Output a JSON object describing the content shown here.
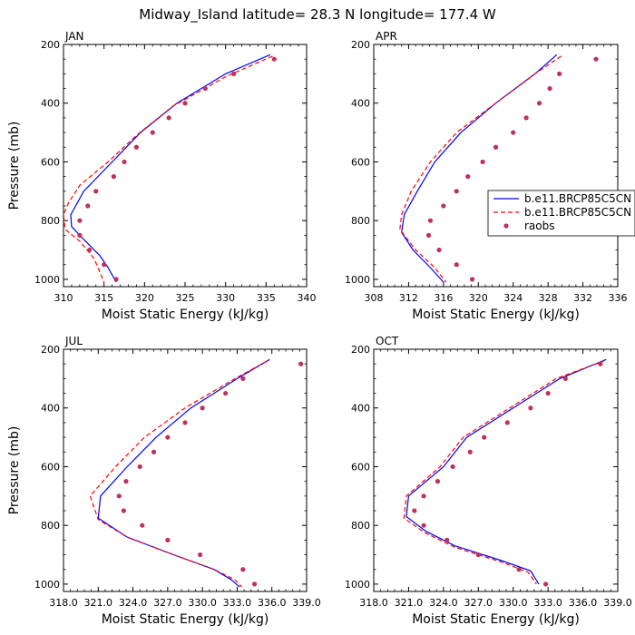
{
  "figure_title": "Midway_Island  latitude= 28.3 N longitude= 177.4 W",
  "colors": {
    "model1": "#0000ff",
    "model2": "#ff0000",
    "raobs": "#c0305a"
  },
  "legend": {
    "entries": [
      {
        "label": "b.e11.BRCP85C5CN",
        "style": "solid"
      },
      {
        "label": "b.e11.BRCP85C5CN",
        "style": "dashed"
      },
      {
        "label": "raobs",
        "style": "marker"
      }
    ]
  },
  "chart_data": [
    {
      "type": "line",
      "title": "JAN",
      "xlabel": "Moist Static Energy (kJ/kg)",
      "ylabel": "Pressure (mb)",
      "xlim": [
        310,
        340
      ],
      "ylim": [
        200,
        1025
      ],
      "y_inverted": true,
      "xticks": [
        310,
        315,
        320,
        325,
        330,
        335,
        340
      ],
      "xticklabels": [
        "310",
        "315",
        "320",
        "325",
        "330",
        "335",
        "340"
      ],
      "yticks": [
        200,
        400,
        600,
        800,
        1000
      ],
      "yticklabels": [
        "200",
        "400",
        "600",
        "800",
        "1000"
      ],
      "series": [
        {
          "name": "b.e11.BRCP85C5CN",
          "style": "solid",
          "points": [
            [
              335.5,
              235
            ],
            [
              330,
              300
            ],
            [
              324,
              400
            ],
            [
              319.5,
              500
            ],
            [
              316,
              600
            ],
            [
              312.5,
              700
            ],
            [
              311.5,
              750
            ],
            [
              310.9,
              780
            ],
            [
              311,
              820
            ],
            [
              312,
              850
            ],
            [
              314.5,
              920
            ],
            [
              315.5,
              960
            ],
            [
              316.5,
              1010
            ]
          ]
        },
        {
          "name": "b.e11.BRCP85C5CN",
          "style": "dashed",
          "points": [
            [
              335.8,
              240
            ],
            [
              330,
              310
            ],
            [
              323.5,
              410
            ],
            [
              319,
              510
            ],
            [
              315.5,
              600
            ],
            [
              312,
              680
            ],
            [
              310.6,
              740
            ],
            [
              310,
              780
            ],
            [
              310.2,
              830
            ],
            [
              312,
              870
            ],
            [
              313.8,
              930
            ],
            [
              315,
              1010
            ]
          ]
        },
        {
          "name": "raobs",
          "style": "marker",
          "points": [
            [
              336,
              250
            ],
            [
              331,
              300
            ],
            [
              327.5,
              350
            ],
            [
              325,
              400
            ],
            [
              323,
              450
            ],
            [
              321,
              500
            ],
            [
              319,
              550
            ],
            [
              317.5,
              600
            ],
            [
              316.2,
              650
            ],
            [
              314,
              700
            ],
            [
              313,
              750
            ],
            [
              312,
              800
            ],
            [
              312,
              850
            ],
            [
              313.2,
              900
            ],
            [
              315,
              950
            ],
            [
              316.5,
              1000
            ]
          ]
        }
      ]
    },
    {
      "type": "line",
      "title": "APR",
      "xlabel": "Moist Static Energy (kJ/kg)",
      "ylabel": "",
      "xlim": [
        308,
        336
      ],
      "ylim": [
        200,
        1025
      ],
      "y_inverted": true,
      "xticks": [
        308,
        312,
        316,
        320,
        324,
        328,
        332,
        336
      ],
      "xticklabels": [
        "308",
        "312",
        "316",
        "320",
        "324",
        "328",
        "332",
        "336"
      ],
      "yticks": [
        200,
        400,
        600,
        800,
        1000
      ],
      "yticklabels": [
        "200",
        "400",
        "600",
        "800",
        "1000"
      ],
      "series": [
        {
          "name": "b.e11.BRCP85C5CN",
          "style": "solid",
          "points": [
            [
              329,
              235
            ],
            [
              326.5,
              300
            ],
            [
              322,
              400
            ],
            [
              318,
              500
            ],
            [
              315,
              600
            ],
            [
              313,
              700
            ],
            [
              311.5,
              780
            ],
            [
              311.2,
              840
            ],
            [
              312.5,
              900
            ],
            [
              314.5,
              960
            ],
            [
              316,
              1010
            ]
          ]
        },
        {
          "name": "b.e11.BRCP85C5CN",
          "style": "dashed",
          "points": [
            [
              329.5,
              240
            ],
            [
              326.5,
              300
            ],
            [
              322,
              400
            ],
            [
              317.5,
              500
            ],
            [
              314.5,
              600
            ],
            [
              312.3,
              700
            ],
            [
              311.2,
              780
            ],
            [
              311,
              830
            ],
            [
              312.8,
              900
            ],
            [
              315,
              960
            ],
            [
              316.3,
              1010
            ]
          ]
        },
        {
          "name": "raobs",
          "style": "marker",
          "points": [
            [
              333.5,
              250
            ],
            [
              329.3,
              300
            ],
            [
              328.2,
              350
            ],
            [
              327,
              400
            ],
            [
              325.5,
              450
            ],
            [
              324,
              500
            ],
            [
              322,
              550
            ],
            [
              320.5,
              600
            ],
            [
              318.8,
              650
            ],
            [
              317.5,
              700
            ],
            [
              316,
              750
            ],
            [
              314.5,
              800
            ],
            [
              314.3,
              850
            ],
            [
              315.5,
              900
            ],
            [
              317.5,
              950
            ],
            [
              319.3,
              1000
            ]
          ]
        }
      ]
    },
    {
      "type": "line",
      "title": "JUL",
      "xlabel": "Moist Static Energy (kJ/kg)",
      "ylabel": "Pressure (mb)",
      "xlim": [
        318,
        339
      ],
      "ylim": [
        200,
        1025
      ],
      "y_inverted": true,
      "xticks": [
        318,
        321,
        324,
        327,
        330,
        333,
        336,
        339
      ],
      "xticklabels": [
        "318.0",
        "321.0",
        "324.0",
        "327.0",
        "330.0",
        "333.0",
        "336.0",
        "339.0"
      ],
      "yticks": [
        200,
        400,
        600,
        800,
        1000
      ],
      "yticklabels": [
        "200",
        "400",
        "600",
        "800",
        "1000"
      ],
      "series": [
        {
          "name": "b.e11.BRCP85C5CN",
          "style": "solid",
          "points": [
            [
              335.8,
              235
            ],
            [
              333,
              300
            ],
            [
              329,
              400
            ],
            [
              326,
              500
            ],
            [
              323.5,
              600
            ],
            [
              321.2,
              700
            ],
            [
              321,
              775
            ],
            [
              323.5,
              840
            ],
            [
              327.5,
              900
            ],
            [
              331,
              950
            ],
            [
              332.5,
              985
            ],
            [
              333.2,
              1010
            ]
          ]
        },
        {
          "name": "b.e11.BRCP85C5CN",
          "style": "dashed",
          "points": [
            [
              335.6,
              240
            ],
            [
              332.8,
              300
            ],
            [
              328.5,
              400
            ],
            [
              325,
              500
            ],
            [
              322.5,
              600
            ],
            [
              320.3,
              700
            ],
            [
              321,
              780
            ],
            [
              323.5,
              840
            ],
            [
              327.5,
              900
            ],
            [
              331,
              950
            ],
            [
              332.8,
              985
            ],
            [
              333.4,
              1010
            ]
          ]
        },
        {
          "name": "raobs",
          "style": "marker",
          "points": [
            [
              338.5,
              250
            ],
            [
              333.5,
              300
            ],
            [
              332,
              350
            ],
            [
              330,
              400
            ],
            [
              328.5,
              450
            ],
            [
              327,
              500
            ],
            [
              325.8,
              550
            ],
            [
              324.6,
              600
            ],
            [
              323.4,
              650
            ],
            [
              322.8,
              700
            ],
            [
              323.2,
              750
            ],
            [
              324.8,
              800
            ],
            [
              327,
              850
            ],
            [
              329.8,
              900
            ],
            [
              333.5,
              950
            ],
            [
              334.5,
              1000
            ]
          ]
        }
      ]
    },
    {
      "type": "line",
      "title": "OCT",
      "xlabel": "Moist Static Energy (kJ/kg)",
      "ylabel": "",
      "xlim": [
        318,
        339
      ],
      "ylim": [
        200,
        1025
      ],
      "y_inverted": true,
      "xticks": [
        318,
        321,
        324,
        327,
        330,
        333,
        336,
        339
      ],
      "xticklabels": [
        "318.0",
        "321.0",
        "324.0",
        "327.0",
        "330.0",
        "333.0",
        "336.0",
        "339.0"
      ],
      "yticks": [
        200,
        400,
        600,
        800,
        1000
      ],
      "yticklabels": [
        "200",
        "400",
        "600",
        "800",
        "1000"
      ],
      "series": [
        {
          "name": "b.e11.BRCP85C5CN",
          "style": "solid",
          "points": [
            [
              338,
              235
            ],
            [
              334,
              300
            ],
            [
              330,
              400
            ],
            [
              326,
              500
            ],
            [
              324,
              600
            ],
            [
              321,
              700
            ],
            [
              320.8,
              770
            ],
            [
              322.5,
              820
            ],
            [
              325,
              870
            ],
            [
              329,
              920
            ],
            [
              331.5,
              955
            ],
            [
              332.2,
              1000
            ]
          ]
        },
        {
          "name": "b.e11.BRCP85C5CN",
          "style": "dashed",
          "points": [
            [
              337.8,
              240
            ],
            [
              333.7,
              300
            ],
            [
              329.7,
              400
            ],
            [
              325.7,
              500
            ],
            [
              323.7,
              600
            ],
            [
              320.8,
              700
            ],
            [
              320.6,
              775
            ],
            [
              322.4,
              825
            ],
            [
              325,
              875
            ],
            [
              329,
              925
            ],
            [
              331.3,
              960
            ],
            [
              332,
              1000
            ]
          ]
        },
        {
          "name": "raobs",
          "style": "marker",
          "points": [
            [
              337.5,
              250
            ],
            [
              334.5,
              300
            ],
            [
              333,
              350
            ],
            [
              331.5,
              400
            ],
            [
              329.5,
              450
            ],
            [
              327.5,
              500
            ],
            [
              326.3,
              550
            ],
            [
              324.8,
              600
            ],
            [
              323.5,
              650
            ],
            [
              322.3,
              700
            ],
            [
              321.5,
              750
            ],
            [
              322.3,
              800
            ],
            [
              324.3,
              850
            ],
            [
              327,
              900
            ],
            [
              330.5,
              950
            ],
            [
              332.8,
              1000
            ]
          ]
        }
      ]
    }
  ]
}
